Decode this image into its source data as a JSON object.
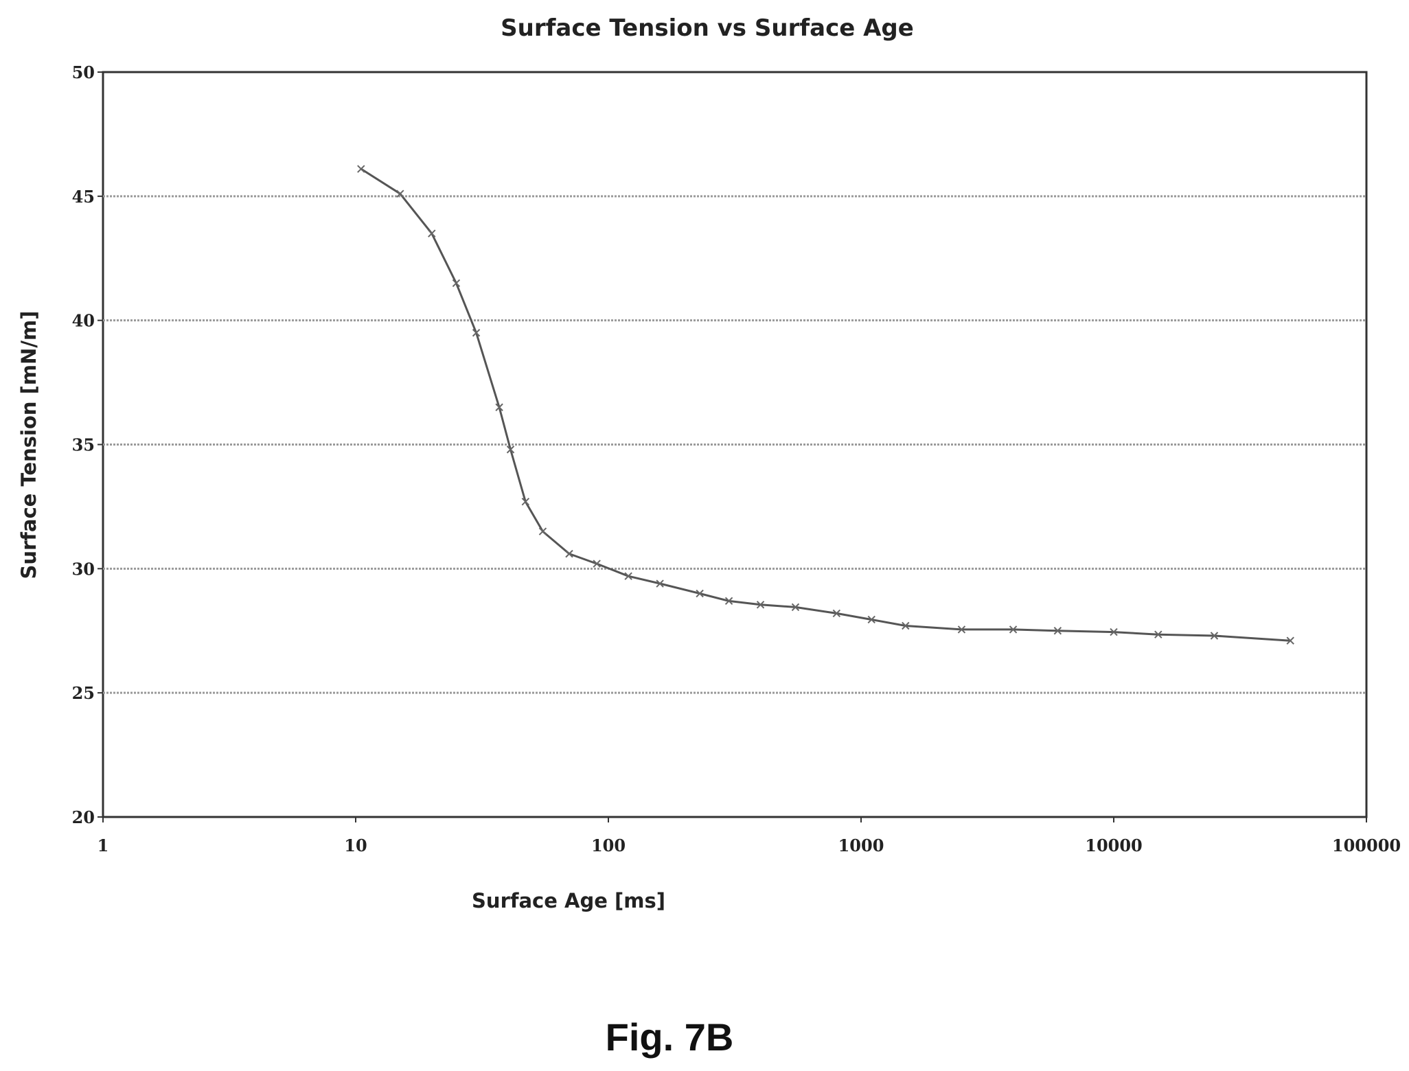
{
  "chart_data": {
    "type": "line",
    "title": "Surface Tension vs Surface Age",
    "xlabel": "Surface Age [ms]",
    "ylabel": "Surface Tension [mN/m]",
    "xscale": "log",
    "xlim": [
      1,
      100000
    ],
    "ylim": [
      20,
      50
    ],
    "x_ticks": [
      "1",
      "10",
      "100",
      "1000",
      "10000",
      "100000"
    ],
    "y_ticks": [
      "20",
      "25",
      "30",
      "35",
      "40",
      "45",
      "50"
    ],
    "grid": "horizontal",
    "legend": "none",
    "series": [
      {
        "color": "#555555",
        "marker": "x",
        "points": [
          {
            "x": 10.5,
            "y": 46.1
          },
          {
            "x": 15,
            "y": 45.1
          },
          {
            "x": 20,
            "y": 43.5
          },
          {
            "x": 25,
            "y": 41.5
          },
          {
            "x": 30,
            "y": 39.5
          },
          {
            "x": 37,
            "y": 36.5
          },
          {
            "x": 41,
            "y": 34.8
          },
          {
            "x": 47,
            "y": 32.7
          },
          {
            "x": 55,
            "y": 31.5
          },
          {
            "x": 70,
            "y": 30.6
          },
          {
            "x": 90,
            "y": 30.2
          },
          {
            "x": 120,
            "y": 29.7
          },
          {
            "x": 160,
            "y": 29.4
          },
          {
            "x": 230,
            "y": 29.0
          },
          {
            "x": 300,
            "y": 28.7
          },
          {
            "x": 400,
            "y": 28.55
          },
          {
            "x": 550,
            "y": 28.45
          },
          {
            "x": 800,
            "y": 28.2
          },
          {
            "x": 1100,
            "y": 27.95
          },
          {
            "x": 1500,
            "y": 27.7
          },
          {
            "x": 2500,
            "y": 27.55
          },
          {
            "x": 4000,
            "y": 27.55
          },
          {
            "x": 6000,
            "y": 27.5
          },
          {
            "x": 10000,
            "y": 27.45
          },
          {
            "x": 15000,
            "y": 27.35
          },
          {
            "x": 25000,
            "y": 27.3
          },
          {
            "x": 50000,
            "y": 27.1
          }
        ]
      }
    ]
  },
  "figure": {
    "caption": "Fig. 7B"
  }
}
